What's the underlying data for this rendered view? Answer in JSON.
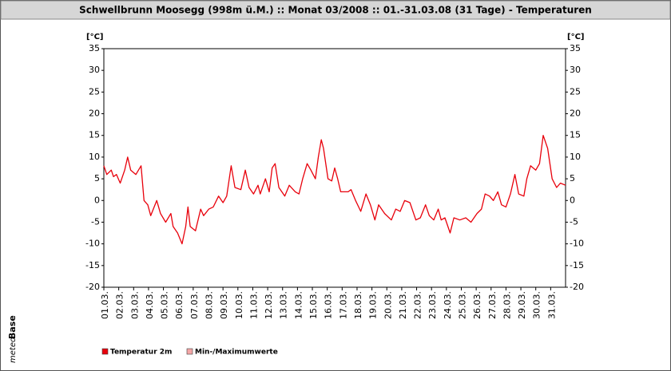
{
  "chart_data": {
    "type": "line",
    "title": "Schwellbrunn Moosegg (998m ü.M.) :: Monat 03/2008 :: 01.-31.03.08 (31 Tage) - Temperaturen",
    "y_label": "[°C]",
    "y2_label": "[°C]",
    "logo": [
      "meteo",
      "Base"
    ],
    "xlim": [
      0,
      31
    ],
    "xticks": [
      {
        "value": 0,
        "label": "01.03."
      },
      {
        "value": 1,
        "label": "02.03."
      },
      {
        "value": 2,
        "label": "03.03."
      },
      {
        "value": 3,
        "label": "04.03."
      },
      {
        "value": 4,
        "label": "05.03."
      },
      {
        "value": 5,
        "label": "06.03."
      },
      {
        "value": 6,
        "label": "07.03."
      },
      {
        "value": 7,
        "label": "08.03."
      },
      {
        "value": 8,
        "label": "09.03."
      },
      {
        "value": 9,
        "label": "10.03."
      },
      {
        "value": 10,
        "label": "11.03."
      },
      {
        "value": 11,
        "label": "12.03."
      },
      {
        "value": 12,
        "label": "13.03."
      },
      {
        "value": 13,
        "label": "14.03."
      },
      {
        "value": 14,
        "label": "15.03."
      },
      {
        "value": 15,
        "label": "16.03."
      },
      {
        "value": 16,
        "label": "17.03."
      },
      {
        "value": 17,
        "label": "18.03."
      },
      {
        "value": 18,
        "label": "19.03."
      },
      {
        "value": 19,
        "label": "20.03."
      },
      {
        "value": 20,
        "label": "21.03."
      },
      {
        "value": 21,
        "label": "22.03."
      },
      {
        "value": 22,
        "label": "23.03."
      },
      {
        "value": 23,
        "label": "24.03."
      },
      {
        "value": 24,
        "label": "25.03."
      },
      {
        "value": 25,
        "label": "26.03."
      },
      {
        "value": 26,
        "label": "27.03."
      },
      {
        "value": 27,
        "label": "28.03."
      },
      {
        "value": 28,
        "label": "29.03."
      },
      {
        "value": 29,
        "label": "30.03."
      },
      {
        "value": 30,
        "label": "31.03."
      }
    ],
    "ylim": [
      -20,
      35
    ],
    "yticks": [
      -20,
      -15,
      -10,
      -5,
      0,
      5,
      10,
      15,
      20,
      25,
      30,
      35
    ],
    "y2lim": [
      -20,
      35
    ],
    "y2ticks": [
      -20,
      -15,
      -10,
      -5,
      0,
      5,
      10,
      15,
      20,
      25,
      30,
      35
    ],
    "x": [
      0,
      0.2,
      0.5,
      0.65,
      0.85,
      1.1,
      1.4,
      1.6,
      1.8,
      2.15,
      2.5,
      2.7,
      2.95,
      3.15,
      3.55,
      3.8,
      4.15,
      4.5,
      4.65,
      4.95,
      5.25,
      5.5,
      5.65,
      5.8,
      6.15,
      6.5,
      6.7,
      7.05,
      7.35,
      7.7,
      8.0,
      8.25,
      8.55,
      8.8,
      9.2,
      9.5,
      9.75,
      10.05,
      10.35,
      10.5,
      10.85,
      11.1,
      11.3,
      11.5,
      11.75,
      12.15,
      12.45,
      12.85,
      13.1,
      13.35,
      13.65,
      13.9,
      14.2,
      14.4,
      14.6,
      14.75,
      15.05,
      15.3,
      15.5,
      15.7,
      15.9,
      16.4,
      16.6,
      16.9,
      17.25,
      17.6,
      17.9,
      18.2,
      18.45,
      18.85,
      19.3,
      19.6,
      19.9,
      20.2,
      20.55,
      20.95,
      21.25,
      21.6,
      21.85,
      22.15,
      22.45,
      22.65,
      22.9,
      23.25,
      23.5,
      23.9,
      24.3,
      24.65,
      25.05,
      25.35,
      25.6,
      25.9,
      26.15,
      26.45,
      26.7,
      27.0,
      27.3,
      27.6,
      27.85,
      28.2,
      28.4,
      28.65,
      29.0,
      29.25,
      29.5,
      29.8,
      30.1,
      30.4,
      30.65,
      31
    ],
    "series": [
      {
        "name": "Temperatur 2m",
        "color": "#e8000b",
        "values": [
          8,
          6,
          7,
          5.5,
          6,
          4,
          7,
          10,
          7,
          6,
          8,
          0,
          -1,
          -3.5,
          0,
          -3,
          -5,
          -3,
          -6,
          -7.5,
          -10,
          -6,
          -1.5,
          -6,
          -7,
          -2,
          -3.5,
          -2,
          -1.5,
          1,
          -0.5,
          1,
          8,
          3,
          2.5,
          7,
          3,
          1.5,
          3.5,
          1.5,
          5,
          2,
          7.5,
          8.5,
          3,
          1,
          3.5,
          2,
          1.5,
          5,
          8.5,
          7,
          5,
          10,
          14,
          12,
          5,
          4.5,
          7.5,
          5,
          2,
          2,
          2.5,
          0,
          -2.5,
          1.5,
          -1,
          -4.5,
          -1,
          -3,
          -4.5,
          -2,
          -2.5,
          0,
          -0.5,
          -4.5,
          -4,
          -1,
          -3.5,
          -4.5,
          -2,
          -4.5,
          -4,
          -7.5,
          -4,
          -4.5,
          -4,
          -5,
          -3,
          -2,
          1.5,
          1,
          0,
          2,
          -1,
          -1.5,
          1.5,
          6,
          1.5,
          1,
          5,
          8,
          7,
          8.5,
          15,
          12,
          5,
          3,
          4,
          3.5
        ]
      },
      {
        "name": "Min-/Maximumwerte",
        "color": "#f4a6a6"
      }
    ]
  }
}
